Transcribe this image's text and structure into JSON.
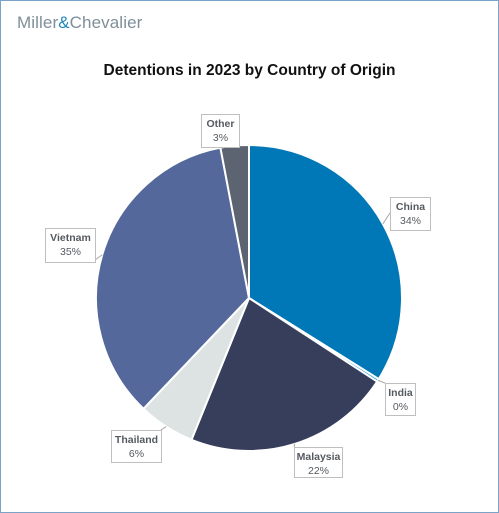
{
  "header": {
    "brand_left": "Miller",
    "brand_amp": "&",
    "brand_right": "Chevalier"
  },
  "chart_data": {
    "type": "pie",
    "title": "Detentions in 2023 by Country of Origin",
    "slices": [
      {
        "label": "China",
        "value": 34,
        "display": "34%",
        "color": "#0077b6"
      },
      {
        "label": "India",
        "value": 0.3,
        "display": "0%",
        "color": "#1a9bd7"
      },
      {
        "label": "Malaysia",
        "value": 22,
        "display": "22%",
        "color": "#363e5c"
      },
      {
        "label": "Thailand",
        "value": 6,
        "display": "6%",
        "color": "#dde3e3"
      },
      {
        "label": "Vietnam",
        "value": 35,
        "display": "35%",
        "color": "#55689b"
      },
      {
        "label": "Other",
        "value": 3,
        "display": "3%",
        "color": "#5d6471"
      }
    ],
    "start_angle_deg": 0,
    "direction": "clockwise",
    "legend": "none"
  }
}
